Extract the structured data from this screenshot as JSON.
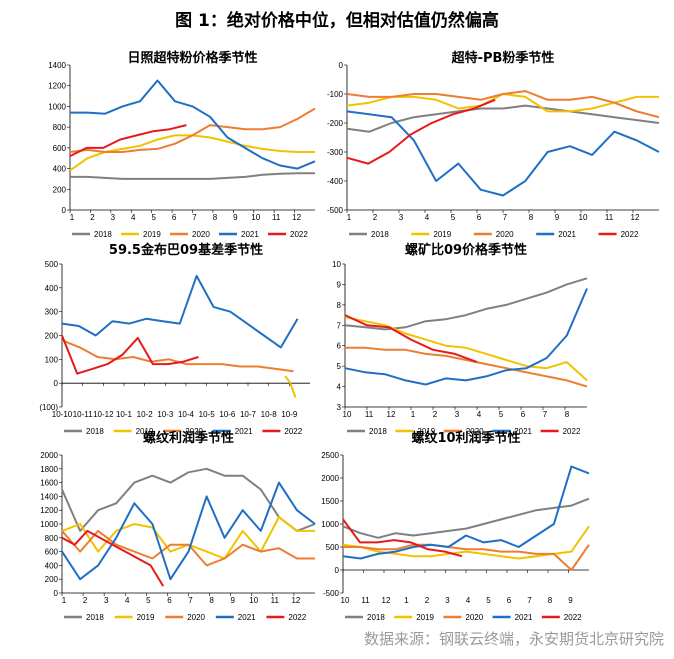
{
  "figure_title": "图 1：绝对价格中位，但相对估值仍然偏高",
  "source": "数据来源：钢联云终端，永安期货北京研究院",
  "colors": {
    "2018": "#808080",
    "2019": "#f2c200",
    "2020": "#ed7d31",
    "2021": "#1f6fc5",
    "2022": "#e61a1a"
  },
  "chart_data": [
    {
      "type": "line",
      "title": "日照超特粉价格季节性",
      "ylim": [
        0,
        1400
      ],
      "yticks": [
        "0",
        "200",
        "400",
        "600",
        "800",
        "1000",
        "1200",
        "1400"
      ],
      "xticks": [
        "1",
        "2",
        "3",
        "4",
        "5",
        "6",
        "7",
        "8",
        "9",
        "10",
        "11",
        "12"
      ],
      "xlim": [
        1,
        13
      ],
      "x0": 1,
      "neg_label_color": "#000000",
      "legend": [
        "2018",
        "2019",
        "2020",
        "2021",
        "2022"
      ],
      "series": [
        {
          "name": "2018",
          "x0": 1,
          "x1": 13,
          "values": [
            320,
            320,
            310,
            300,
            300,
            300,
            300,
            300,
            300,
            310,
            320,
            340,
            350,
            355,
            355
          ]
        },
        {
          "name": "2019",
          "x0": 1,
          "x1": 13,
          "values": [
            380,
            500,
            560,
            590,
            620,
            680,
            720,
            720,
            700,
            660,
            620,
            590,
            570,
            560,
            560
          ]
        },
        {
          "name": "2020",
          "x0": 1,
          "x1": 13,
          "values": [
            560,
            580,
            560,
            560,
            580,
            590,
            640,
            720,
            820,
            800,
            780,
            780,
            800,
            880,
            980
          ]
        },
        {
          "name": "2021",
          "x0": 1,
          "x1": 13,
          "values": [
            940,
            940,
            930,
            1000,
            1050,
            1250,
            1050,
            1000,
            900,
            700,
            600,
            500,
            430,
            400,
            470
          ]
        },
        {
          "name": "2022",
          "x0": 1,
          "x1": 6.7,
          "values": [
            520,
            600,
            600,
            680,
            720,
            760,
            780,
            820
          ]
        }
      ]
    },
    {
      "type": "line",
      "title": "超特-PB粉季节性",
      "ylim": [
        -500,
        0
      ],
      "yticks": [
        "-500",
        "-400",
        "-300",
        "-200",
        "-100",
        "0"
      ],
      "xticks": [
        "1",
        "2",
        "3",
        "4",
        "5",
        "6",
        "7",
        "8",
        "9",
        "10",
        "11",
        "12"
      ],
      "xlim": [
        1,
        13
      ],
      "x0": 1,
      "neg_label_color": "#000000",
      "legend": [
        "2018",
        "2019",
        "2020",
        "2021",
        "2022"
      ],
      "series": [
        {
          "name": "2018",
          "x0": 1,
          "x1": 13,
          "values": [
            -220,
            -230,
            -200,
            -180,
            -170,
            -160,
            -150,
            -150,
            -140,
            -150,
            -160,
            -170,
            -180,
            -190,
            -200
          ]
        },
        {
          "name": "2019",
          "x0": 1,
          "x1": 13,
          "values": [
            -140,
            -130,
            -110,
            -110,
            -120,
            -150,
            -140,
            -100,
            -110,
            -160,
            -160,
            -150,
            -130,
            -110,
            -110
          ]
        },
        {
          "name": "2020",
          "x0": 1,
          "x1": 13,
          "values": [
            -100,
            -110,
            -110,
            -100,
            -100,
            -110,
            -120,
            -100,
            -90,
            -120,
            -120,
            -110,
            -130,
            -160,
            -180
          ]
        },
        {
          "name": "2021",
          "x0": 1,
          "x1": 13,
          "values": [
            -160,
            -170,
            -180,
            -260,
            -400,
            -340,
            -430,
            -450,
            -400,
            -300,
            -280,
            -310,
            -230,
            -260,
            -300
          ]
        },
        {
          "name": "2022",
          "x0": 1,
          "x1": 6.7,
          "values": [
            -320,
            -340,
            -300,
            -240,
            -200,
            -170,
            -150,
            -120
          ]
        }
      ]
    },
    {
      "type": "line",
      "title": "59.5金布巴09基差季节性",
      "ylim": [
        -100,
        500
      ],
      "yticks": [
        "(100)",
        "0",
        "100",
        "200",
        "300",
        "400",
        "500"
      ],
      "xticks": [
        "10-10",
        "10-11",
        "10-12",
        "10-1",
        "10-2",
        "10-3",
        "10-4",
        "10-5",
        "10-6",
        "10-7",
        "10-8",
        "10-9"
      ],
      "xlim": [
        1,
        13
      ],
      "x0": 1,
      "neg_label_color": "#e61a1a",
      "legend": [
        "2018",
        "2019",
        "2020",
        "2021",
        "2022"
      ],
      "series": [
        {
          "name": "2019",
          "x0": 11.8,
          "x1": 12.3,
          "values": [
            30,
            0,
            -60
          ]
        },
        {
          "name": "2020",
          "x0": 1,
          "x1": 12.2,
          "values": [
            180,
            150,
            110,
            100,
            110,
            90,
            100,
            80,
            80,
            80,
            70,
            70,
            60,
            50
          ]
        },
        {
          "name": "2021",
          "x0": 1,
          "x1": 12.4,
          "values": [
            250,
            240,
            200,
            260,
            250,
            270,
            260,
            250,
            450,
            320,
            300,
            250,
            200,
            150,
            270
          ]
        },
        {
          "name": "2022",
          "x0": 1,
          "x1": 7.6,
          "values": [
            200,
            40,
            60,
            80,
            120,
            190,
            80,
            80,
            90,
            110
          ]
        }
      ]
    },
    {
      "type": "line",
      "title": "螺矿比09价格季节性",
      "ylim": [
        3,
        10
      ],
      "yticks": [
        "3",
        "4",
        "5",
        "6",
        "7",
        "8",
        "9",
        "10"
      ],
      "xticks": [
        "10",
        "11",
        "12",
        "1",
        "2",
        "3",
        "4",
        "5",
        "6",
        "7",
        "8"
      ],
      "xlim": [
        1,
        12
      ],
      "x0": 1,
      "neg_label_color": "#000000",
      "legend": [
        "2018",
        "2019",
        "2020",
        "2021",
        "2022"
      ],
      "series": [
        {
          "name": "2018",
          "x0": 1,
          "x1": 12,
          "values": [
            7.0,
            6.9,
            6.8,
            6.9,
            7.2,
            7.3,
            7.5,
            7.8,
            8.0,
            8.3,
            8.6,
            9.0,
            9.3
          ]
        },
        {
          "name": "2019",
          "x0": 1,
          "x1": 12,
          "values": [
            7.4,
            7.2,
            7.0,
            6.6,
            6.3,
            6.0,
            5.9,
            5.6,
            5.3,
            5.0,
            4.9,
            5.2,
            4.3
          ]
        },
        {
          "name": "2020",
          "x0": 1,
          "x1": 12,
          "values": [
            5.9,
            5.9,
            5.8,
            5.8,
            5.6,
            5.5,
            5.3,
            5.1,
            4.9,
            4.7,
            4.5,
            4.3,
            4.0
          ]
        },
        {
          "name": "2021",
          "x0": 1,
          "x1": 12,
          "values": [
            4.9,
            4.7,
            4.6,
            4.3,
            4.1,
            4.4,
            4.3,
            4.5,
            4.8,
            4.9,
            5.4,
            6.5,
            8.8
          ]
        },
        {
          "name": "2022",
          "x0": 1,
          "x1": 7,
          "values": [
            7.5,
            7.0,
            6.9,
            6.3,
            5.8,
            5.6,
            5.2
          ]
        }
      ]
    },
    {
      "type": "line",
      "title": "螺纹利润季节性",
      "ylim": [
        0,
        2000
      ],
      "yticks": [
        "0",
        "200",
        "400",
        "600",
        "800",
        "1000",
        "1200",
        "1400",
        "1600",
        "1800",
        "2000"
      ],
      "xticks": [
        "1",
        "2",
        "3",
        "4",
        "5",
        "6",
        "7",
        "8",
        "9",
        "10",
        "11",
        "12"
      ],
      "xlim": [
        1,
        13
      ],
      "x0": 1,
      "neg_label_color": "#000000",
      "legend": [
        "2018",
        "2019",
        "2020",
        "2021",
        "2022"
      ],
      "series": [
        {
          "name": "2018",
          "x0": 1,
          "x1": 13,
          "values": [
            1500,
            900,
            1200,
            1300,
            1600,
            1700,
            1600,
            1750,
            1800,
            1700,
            1700,
            1500,
            1100,
            900,
            1000
          ]
        },
        {
          "name": "2019",
          "x0": 1,
          "x1": 13,
          "values": [
            900,
            1000,
            600,
            900,
            1000,
            950,
            600,
            700,
            600,
            500,
            900,
            600,
            1100,
            900,
            900
          ]
        },
        {
          "name": "2020",
          "x0": 1,
          "x1": 13,
          "values": [
            900,
            600,
            900,
            700,
            600,
            500,
            700,
            700,
            400,
            500,
            700,
            600,
            650,
            500,
            500
          ]
        },
        {
          "name": "2021",
          "x0": 1,
          "x1": 13,
          "values": [
            600,
            200,
            400,
            800,
            1300,
            1000,
            200,
            600,
            1400,
            800,
            1200,
            900,
            1600,
            1200,
            1000
          ]
        },
        {
          "name": "2022",
          "x0": 1,
          "x1": 5.8,
          "values": [
            800,
            700,
            900,
            800,
            700,
            600,
            500,
            400,
            100
          ]
        }
      ]
    },
    {
      "type": "line",
      "title": "螺纹10利润季节性",
      "ylim": [
        -500,
        2500
      ],
      "yticks": [
        "-500",
        "0",
        "500",
        "1000",
        "1500",
        "2000",
        "2500"
      ],
      "xticks": [
        "10",
        "11",
        "12",
        "1",
        "2",
        "3",
        "4",
        "5",
        "6",
        "7",
        "8",
        "9"
      ],
      "xlim": [
        1,
        13
      ],
      "x0": 1,
      "neg_label_color": "#000000",
      "legend": [
        "2018",
        "2019",
        "2020",
        "2021",
        "2022"
      ],
      "series": [
        {
          "name": "2018",
          "x0": 1,
          "x1": 13,
          "values": [
            950,
            800,
            700,
            800,
            750,
            800,
            850,
            900,
            1000,
            1100,
            1200,
            1300,
            1350,
            1400,
            1550
          ]
        },
        {
          "name": "2019",
          "x0": 1,
          "x1": 13,
          "values": [
            550,
            500,
            400,
            350,
            300,
            300,
            350,
            400,
            350,
            300,
            250,
            300,
            350,
            400,
            950
          ]
        },
        {
          "name": "2020",
          "x0": 1,
          "x1": 13,
          "values": [
            500,
            500,
            450,
            450,
            550,
            550,
            500,
            450,
            450,
            400,
            400,
            350,
            350,
            0,
            550
          ]
        },
        {
          "name": "2021",
          "x0": 1,
          "x1": 13,
          "values": [
            300,
            250,
            350,
            400,
            500,
            550,
            500,
            750,
            600,
            650,
            500,
            750,
            1000,
            2250,
            2100
          ]
        },
        {
          "name": "2022",
          "x0": 1,
          "x1": 6.8,
          "values": [
            1100,
            600,
            600,
            650,
            600,
            450,
            400,
            300
          ]
        }
      ]
    }
  ]
}
